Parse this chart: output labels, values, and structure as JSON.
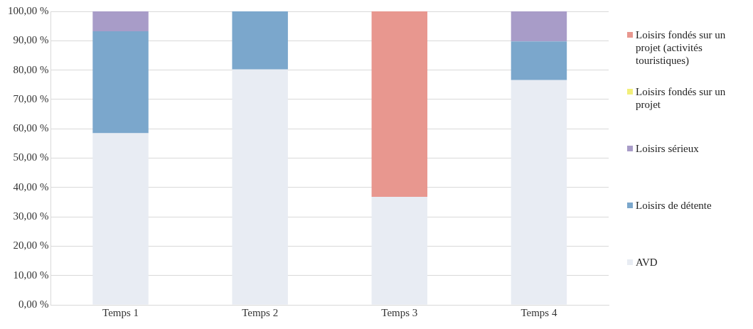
{
  "chart_data": {
    "type": "bar",
    "stacked": true,
    "categories": [
      "Temps 1",
      "Temps 2",
      "Temps 3",
      "Temps 4"
    ],
    "series": [
      {
        "name": "AVD",
        "color": "#e8ecf3",
        "values": [
          58.5,
          80.2,
          36.8,
          76.6
        ]
      },
      {
        "name": "Loisirs de détente",
        "color": "#7ba7cc",
        "values": [
          34.7,
          19.8,
          0,
          13.2
        ]
      },
      {
        "name": "Loisirs sérieux",
        "color": "#a89cc8",
        "values": [
          6.8,
          0,
          0,
          10.2
        ]
      },
      {
        "name": "Loisirs fondés sur un projet",
        "color": "#f2ef7a",
        "values": [
          0,
          0,
          0,
          0
        ]
      },
      {
        "name": "Loisirs fondés sur un projet (activités touristiques)",
        "color": "#e8978f",
        "values": [
          0,
          0,
          63.2,
          0
        ]
      }
    ],
    "ylim": [
      0,
      100
    ],
    "yticks": [
      {
        "value": 0,
        "label": "0,00 %"
      },
      {
        "value": 10,
        "label": "10,00 %"
      },
      {
        "value": 20,
        "label": "20,00 %"
      },
      {
        "value": 30,
        "label": "30,00 %"
      },
      {
        "value": 40,
        "label": "40,00 %"
      },
      {
        "value": 50,
        "label": "50,00 %"
      },
      {
        "value": 60,
        "label": "60,00 %"
      },
      {
        "value": 70,
        "label": "70,00 %"
      },
      {
        "value": 80,
        "label": "80,00 %"
      },
      {
        "value": 90,
        "label": "90,00 %"
      },
      {
        "value": 100,
        "label": "100,00 %"
      }
    ],
    "grid": "y",
    "legend": "right"
  }
}
